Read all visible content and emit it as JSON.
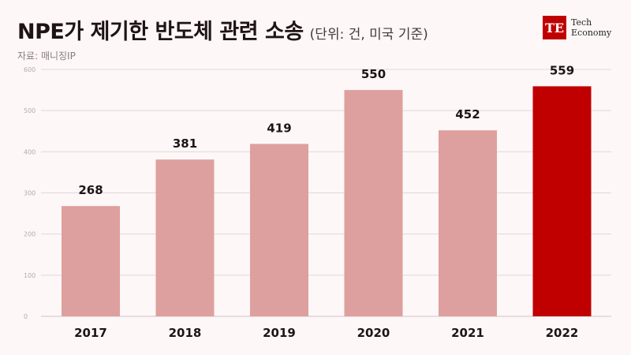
{
  "header": {
    "title": "NPE가 제기한 반도체 관련 소송",
    "unit": "(단위: 건, 미국 기준)",
    "source": "자료: 매니징IP"
  },
  "logo": {
    "mark": "TE",
    "line1": "Tech",
    "line2": "Economy"
  },
  "colors": {
    "bar": "#dda09f",
    "highlight": "#c00000"
  },
  "chart_data": {
    "type": "bar",
    "title": "NPE가 제기한 반도체 관련 소송",
    "categories": [
      "2017",
      "2018",
      "2019",
      "2020",
      "2021",
      "2022"
    ],
    "values": [
      268,
      381,
      419,
      550,
      452,
      559
    ],
    "highlight_index": 5,
    "ylim": [
      0,
      600
    ],
    "yticks": [
      0,
      100,
      200,
      300,
      400,
      500,
      600
    ],
    "grid": true,
    "xlabel": "",
    "ylabel": ""
  }
}
